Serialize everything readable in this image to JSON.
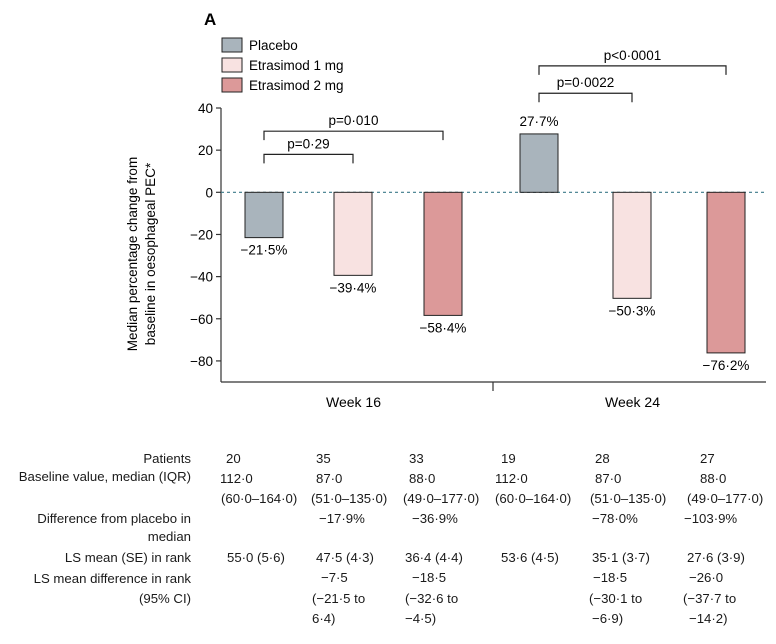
{
  "chart_data": {
    "panel_label": "A",
    "type": "bar",
    "ylabel_lines": [
      "Median percentage change from",
      "baseline in oesophageal PEC*"
    ],
    "ylim": [
      -90,
      40
    ],
    "yticks": [
      40,
      20,
      0,
      -20,
      -40,
      -60,
      -80
    ],
    "ytick_labels": [
      "40",
      "20",
      "0",
      "−20",
      "−40",
      "−60",
      "−80"
    ],
    "groups": [
      "Week 16",
      "Week 24"
    ],
    "series": [
      {
        "name": "Placebo",
        "color": "#a9b4bc",
        "values": [
          -21.5,
          27.7
        ],
        "labels": [
          "−21·5%",
          "27·7%"
        ]
      },
      {
        "name": "Etrasimod 1 mg",
        "color": "#f8e2e1",
        "values": [
          -39.4,
          -50.3
        ],
        "labels": [
          "−39·4%",
          "−50·3%"
        ]
      },
      {
        "name": "Etrasimod 2 mg",
        "color": "#dc9999",
        "values": [
          -58.4,
          -76.2
        ],
        "labels": [
          "−58·4%",
          "−76·2%"
        ]
      }
    ],
    "comparisons": [
      {
        "group": 0,
        "from": 0,
        "to": 1,
        "level": 18,
        "label": "p=0·29"
      },
      {
        "group": 0,
        "from": 0,
        "to": 2,
        "level": 29,
        "label": "p=0·010"
      },
      {
        "group": 1,
        "from": 0,
        "to": 1,
        "level": 47,
        "label": "p=0·0022"
      },
      {
        "group": 1,
        "from": 0,
        "to": 2,
        "level": 60,
        "label": "p<0·0001"
      }
    ],
    "reference_line": 0
  },
  "table": {
    "row_labels": {
      "patients": "Patients",
      "baseline": "Baseline value, median (IQR)",
      "diff_line1": "Difference from placebo in",
      "diff_line2": "median",
      "lsmean": "LS mean (SE) in rank",
      "lsdiff_line1": "LS mean difference in rank",
      "lsdiff_line2": "(95% CI)"
    },
    "columns": [
      {
        "patients": "20",
        "baseline_median": "112·0",
        "baseline_iqr": "(60·0–164·0)",
        "diff": "",
        "lsmean": "55·0 (5·6)",
        "lsdiff_1": "",
        "lsdiff_2": "",
        "lsdiff_3": ""
      },
      {
        "patients": "35",
        "baseline_median": "87·0",
        "baseline_iqr": "(51·0–135·0)",
        "diff": "−17·9%",
        "lsmean": "47·5 (4·3)",
        "lsdiff_1": "−7·5",
        "lsdiff_2": "(−21·5 to",
        "lsdiff_3": "6·4)"
      },
      {
        "patients": "33",
        "baseline_median": "88·0",
        "baseline_iqr": "(49·0–177·0)",
        "diff": "−36·9%",
        "lsmean": "36·4 (4·4)",
        "lsdiff_1": "−18·5",
        "lsdiff_2": "(−32·6 to",
        "lsdiff_3": "−4·5)"
      },
      {
        "patients": "19",
        "baseline_median": "112·0",
        "baseline_iqr": "(60·0–164·0)",
        "diff": "",
        "lsmean": "53·6 (4·5)",
        "lsdiff_1": "",
        "lsdiff_2": "",
        "lsdiff_3": ""
      },
      {
        "patients": "28",
        "baseline_median": "87·0",
        "baseline_iqr": "(51·0–135·0)",
        "diff": "−78·0%",
        "lsmean": "35·1 (3·7)",
        "lsdiff_1": "−18·5",
        "lsdiff_2": "(−30·1 to",
        "lsdiff_3": "−6·9)"
      },
      {
        "patients": "27",
        "baseline_median": "88·0",
        "baseline_iqr": "(49·0–177·0)",
        "diff": "−103·9%",
        "lsmean": "27·6 (3·9)",
        "lsdiff_1": "−26·0",
        "lsdiff_2": "(−37·7 to",
        "lsdiff_3": "−14·2)"
      }
    ]
  }
}
